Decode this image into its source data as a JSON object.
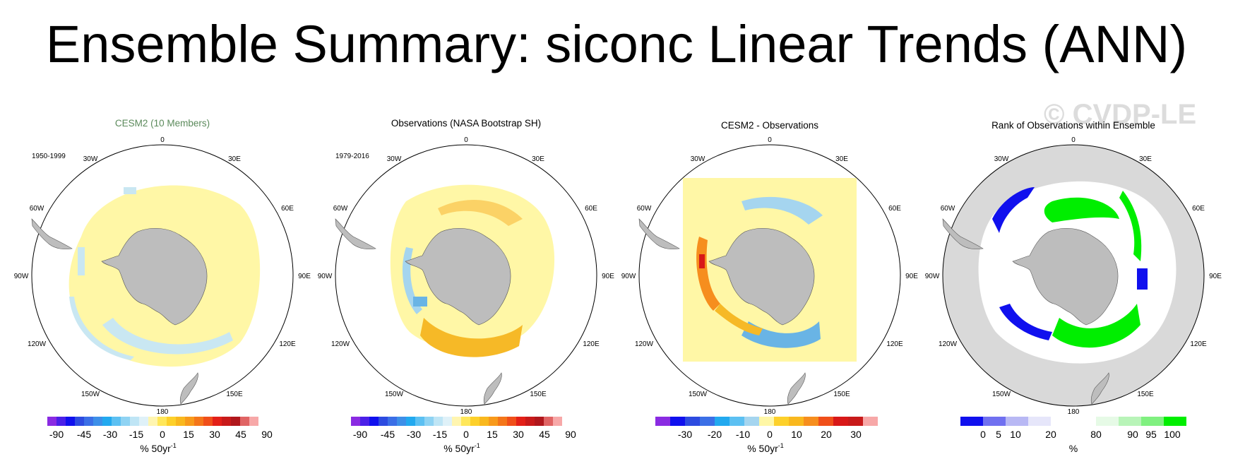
{
  "title": "Ensemble Summary: siconc Linear Trends (ANN)",
  "watermark": "© CVDP-LE",
  "colors": {
    "title_green": "#5b8a5b",
    "land": "#bdbdbd",
    "background_panel4": "#d9d9d9"
  },
  "panels": [
    {
      "title": "CESM2 (10 Members)",
      "period": "1950-1999",
      "lon_labels": [
        "0",
        "30E",
        "60E",
        "90E",
        "120E",
        "150E",
        "180",
        "150W",
        "120W",
        "90W",
        "60W",
        "30W"
      ],
      "colorbar": {
        "ticks": [
          "-90",
          "-45",
          "-30",
          "-15",
          "0",
          "15",
          "30",
          "45",
          "90"
        ],
        "unit": "% 50yr",
        "unit_sup": "-1"
      }
    },
    {
      "title": "Observations (NASA Bootstrap SH)",
      "period": "1979-2016",
      "lon_labels": [
        "0",
        "30E",
        "60E",
        "90E",
        "120E",
        "150E",
        "180",
        "150W",
        "120W",
        "90W",
        "60W",
        "30W"
      ],
      "colorbar": {
        "ticks": [
          "-90",
          "-45",
          "-30",
          "-15",
          "0",
          "15",
          "30",
          "45",
          "90"
        ],
        "unit": "% 50yr",
        "unit_sup": "-1"
      }
    },
    {
      "title": "CESM2 - Observations",
      "period": "",
      "lon_labels": [
        "0",
        "30E",
        "60E",
        "90E",
        "120E",
        "150E",
        "180",
        "150W",
        "120W",
        "90W",
        "60W",
        "30W"
      ],
      "colorbar": {
        "ticks": [
          "-30",
          "-20",
          "-10",
          "0",
          "10",
          "20",
          "30"
        ],
        "unit": "% 50yr",
        "unit_sup": "-1"
      }
    },
    {
      "title": "Rank of Observations within Ensemble",
      "period": "",
      "lon_labels": [
        "0",
        "30E",
        "60E",
        "90E",
        "120E",
        "150E",
        "180",
        "150W",
        "120W",
        "90W",
        "60W",
        "30W"
      ],
      "colorbar": {
        "ticks": [
          "0",
          "5",
          "10",
          "20",
          "80",
          "90",
          "95",
          "100"
        ],
        "unit": "%",
        "unit_sup": ""
      }
    }
  ]
}
